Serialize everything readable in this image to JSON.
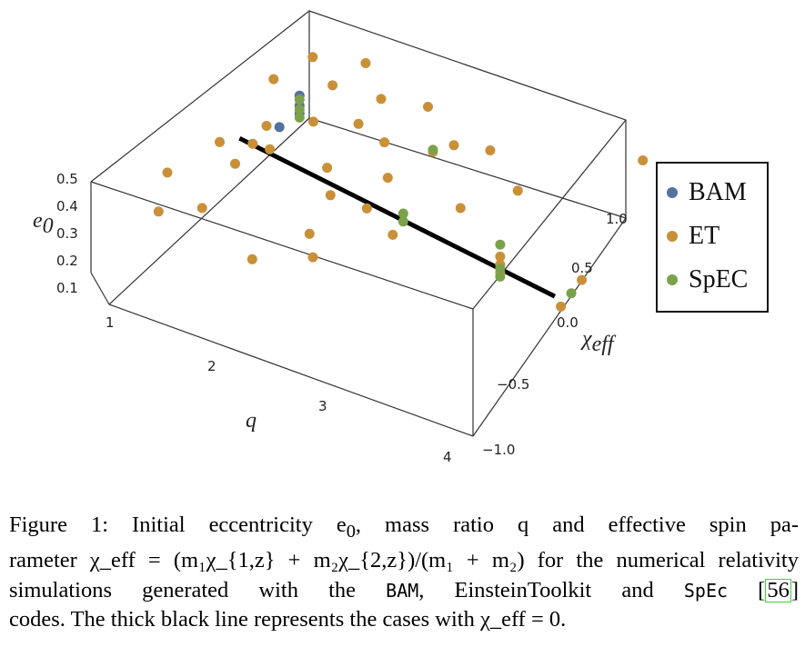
{
  "chart_data": {
    "type": "scatter",
    "dimensions": 3,
    "axes": {
      "q": {
        "label": "q",
        "ticks": [
          "1",
          "2",
          "3",
          "4"
        ],
        "range": [
          1,
          4
        ]
      },
      "chi_eff": {
        "label": "χ",
        "label_sub": "eff",
        "ticks": [
          "−1.0",
          "−0.5",
          "0.0",
          "0.5",
          "1.0"
        ],
        "range": [
          -1,
          1
        ]
      },
      "e0": {
        "label": "e",
        "label_sub": "0",
        "ticks": [
          "0.1",
          "0.2",
          "0.3",
          "0.4",
          "0.5"
        ],
        "range": [
          0,
          0.5
        ]
      }
    },
    "zero_line": {
      "chi_eff": 0,
      "q_range": [
        1,
        4
      ],
      "color": "#000000"
    },
    "legend_position": "right",
    "series": [
      {
        "name": "BAM",
        "color": "#55719f",
        "points": [
          [
            1.4,
            0.4,
            0.48
          ],
          [
            1.4,
            0.4,
            0.43
          ],
          [
            1.4,
            0.4,
            0.39
          ],
          [
            1.45,
            0.15,
            0.45
          ]
        ]
      },
      {
        "name": "ET",
        "color": "#c99038",
        "points": [
          [
            1.0,
            -0.4,
            0.38
          ],
          [
            1.0,
            0.1,
            0.3
          ],
          [
            1.1,
            0.3,
            0.22
          ],
          [
            1.1,
            -0.6,
            0.3
          ],
          [
            1.1,
            0.5,
            0.45
          ],
          [
            1.2,
            -0.3,
            0.2
          ],
          [
            1.25,
            0.7,
            0.5
          ],
          [
            1.3,
            0.2,
            0.4
          ],
          [
            1.3,
            -0.1,
            0.35
          ],
          [
            1.5,
            0.6,
            0.46
          ],
          [
            1.5,
            0.0,
            0.42
          ],
          [
            1.6,
            0.8,
            0.5
          ],
          [
            1.6,
            0.3,
            0.44
          ],
          [
            1.7,
            -0.4,
            0.1
          ],
          [
            1.8,
            0.5,
            0.38
          ],
          [
            1.8,
            0.2,
            0.3
          ],
          [
            1.9,
            0.6,
            0.48
          ],
          [
            2.0,
            0.0,
            0.3
          ],
          [
            2.0,
            -0.2,
            0.2
          ],
          [
            2.1,
            0.4,
            0.4
          ],
          [
            2.2,
            0.7,
            0.46
          ],
          [
            2.2,
            -0.4,
            0.22
          ],
          [
            2.3,
            0.2,
            0.36
          ],
          [
            2.3,
            0.0,
            0.3
          ],
          [
            2.5,
            0.4,
            0.44
          ],
          [
            2.5,
            0.6,
            0.38
          ],
          [
            2.6,
            -0.1,
            0.28
          ],
          [
            2.8,
            0.6,
            0.42
          ],
          [
            2.9,
            0.2,
            0.34
          ],
          [
            3.2,
            0.4,
            0.4
          ],
          [
            3.4,
            0.0,
            0.3
          ],
          [
            3.4,
            0.0,
            0.26
          ],
          [
            3.4,
            0.0,
            0.22
          ],
          [
            3.8,
            0.9,
            0.45
          ],
          [
            3.9,
            0.2,
            0.2
          ],
          [
            3.9,
            0.0,
            0.16
          ]
        ]
      },
      {
        "name": "SpEC",
        "color": "#7ba24a",
        "points": [
          [
            1.4,
            0.4,
            0.46
          ],
          [
            1.4,
            0.4,
            0.41
          ],
          [
            1.4,
            0.4,
            0.37
          ],
          [
            2.5,
            0.4,
            0.45
          ],
          [
            2.6,
            0.0,
            0.34
          ],
          [
            2.6,
            0.0,
            0.3
          ],
          [
            3.4,
            0.0,
            0.36
          ],
          [
            3.4,
            0.0,
            0.24
          ],
          [
            3.4,
            0.0,
            0.2
          ],
          [
            3.9,
            0.1,
            0.18
          ]
        ]
      }
    ]
  },
  "caption": {
    "line1": "Figure 1: Initial eccentricity e",
    "line1_sub": "0",
    "line1_rest": ", mass ratio q and effective spin pa-",
    "line2": "rameter χ_eff = (m₁χ_{1,z} + m₂χ_{2,z})/(m₁ + m₂) for the numerical relativity",
    "line3_a": "simulations generated with the ",
    "line3_bam": "BAM",
    "line3_b": ", EinsteinToolkit and ",
    "line3_spec": "SpEc",
    "line3_c": " [",
    "line3_cite": "56",
    "line3_d": "]",
    "line4": "codes. The thick black line represents the cases with χ_eff = 0."
  }
}
